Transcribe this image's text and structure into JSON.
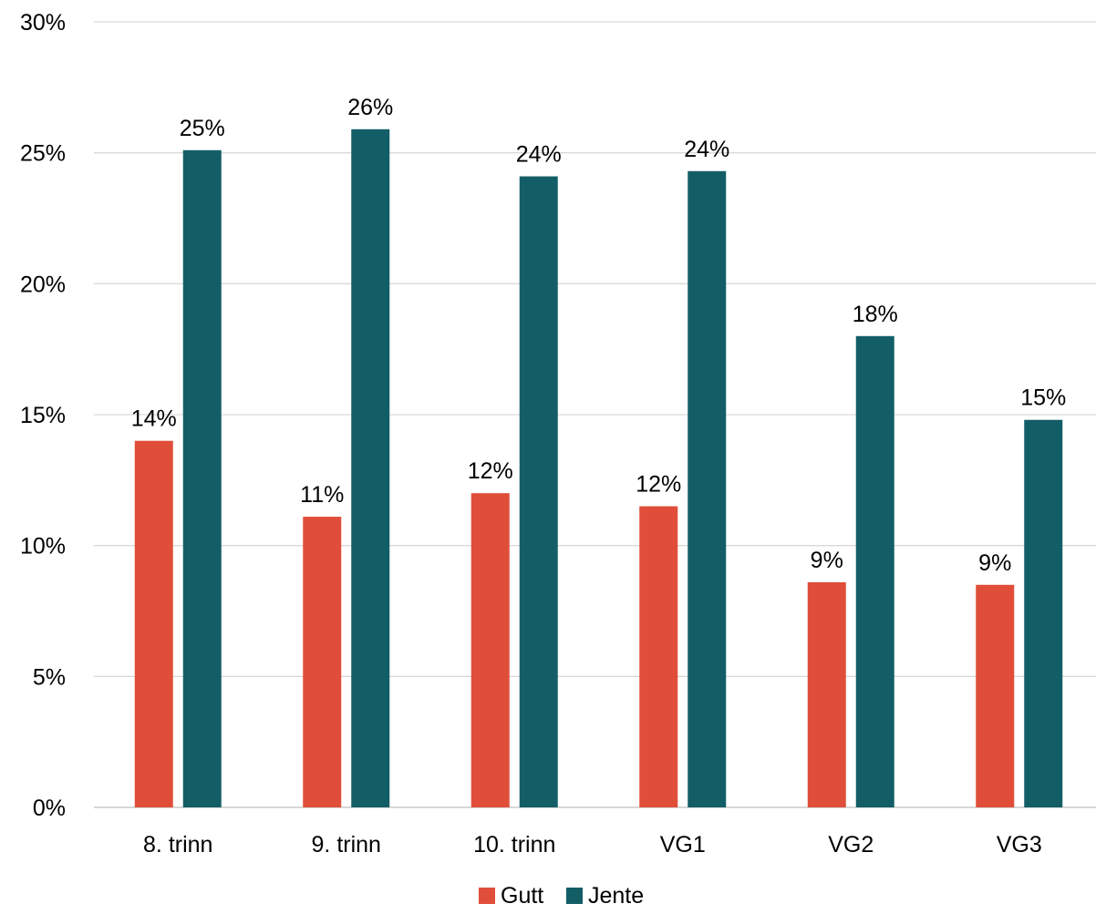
{
  "chart_data": {
    "type": "bar",
    "title": "",
    "xlabel": "",
    "ylabel": "",
    "categories": [
      "8. trinn",
      "9. trinn",
      "10. trinn",
      "VG1",
      "VG2",
      "VG3"
    ],
    "series": [
      {
        "name": "Gutt",
        "color": "#E04E39",
        "values": [
          14.0,
          11.1,
          12.0,
          11.5,
          8.6,
          8.5
        ],
        "labels": [
          "14%",
          "11%",
          "12%",
          "12%",
          "9%",
          "9%"
        ]
      },
      {
        "name": "Jente",
        "color": "#135E66",
        "values": [
          25.1,
          25.9,
          24.1,
          24.3,
          18.0,
          14.8
        ],
        "labels": [
          "25%",
          "26%",
          "24%",
          "24%",
          "18%",
          "15%"
        ]
      }
    ],
    "ylim": [
      0,
      30
    ],
    "yticks": [
      0,
      5,
      10,
      15,
      20,
      25,
      30
    ],
    "ytick_labels": [
      "0%",
      "5%",
      "10%",
      "15%",
      "20%",
      "25%",
      "30%"
    ],
    "grid": true,
    "legend_position": "bottom-center"
  }
}
